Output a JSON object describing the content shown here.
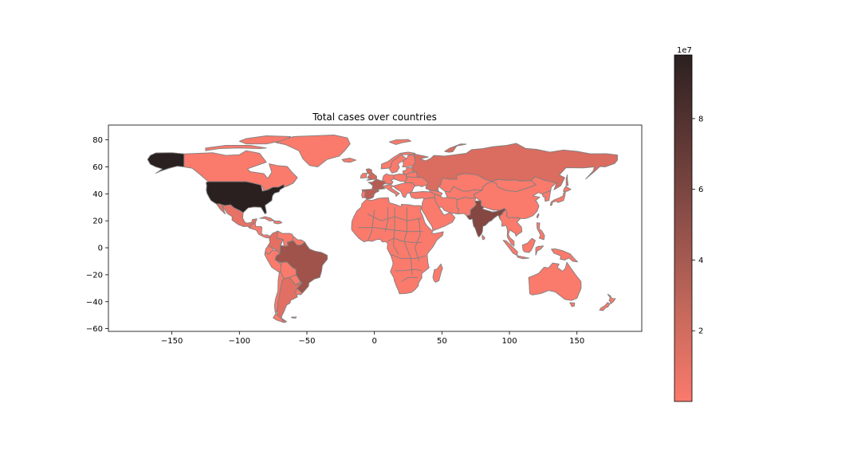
{
  "chart_data": {
    "type": "choropleth",
    "title": "Total cases over countries",
    "xlabel": "",
    "ylabel": "",
    "xlim": [
      -197,
      198
    ],
    "ylim": [
      -62,
      91
    ],
    "xticks": [
      -150,
      -100,
      -50,
      0,
      50,
      100,
      150
    ],
    "xtick_labels": [
      "−150",
      "−100",
      "−50",
      "0",
      "50",
      "100",
      "150"
    ],
    "yticks": [
      80,
      60,
      40,
      20,
      0,
      -20,
      -40,
      -60
    ],
    "ytick_labels": [
      "80",
      "60",
      "40",
      "20",
      "0",
      "−20",
      "−40",
      "−60"
    ],
    "grid": false,
    "colorbar": {
      "label": "",
      "offset_text": "1e7",
      "range": [
        0,
        9.8
      ],
      "ticks": [
        2,
        4,
        6,
        8
      ],
      "tick_labels": [
        "2",
        "4",
        "6",
        "8"
      ],
      "color_low": "#fa7a6c",
      "color_high": "#2b2020"
    },
    "edge_color": "#808080",
    "base_fill": "#fa7a6c",
    "highlighted_regions": [
      {
        "name": "United States",
        "value": 9.8
      },
      {
        "name": "India",
        "value": 5.6
      },
      {
        "name": "Brazil",
        "value": 4.3
      },
      {
        "name": "Russia",
        "value": 1.5
      },
      {
        "name": "France",
        "value": 3.2
      },
      {
        "name": "Spain",
        "value": 3.0
      },
      {
        "name": "United Kingdom",
        "value": 1.9
      },
      {
        "name": "Argentina",
        "value": 1.2
      },
      {
        "name": "Colombia",
        "value": 1.1
      },
      {
        "name": "Mexico",
        "value": 0.9
      }
    ]
  }
}
